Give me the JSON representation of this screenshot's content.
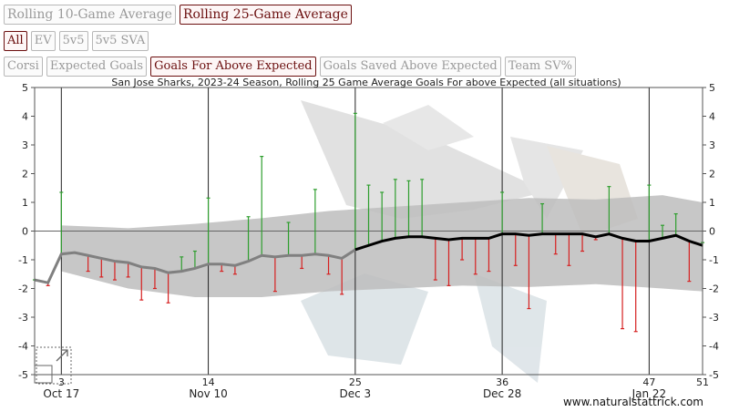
{
  "controls": {
    "window_buttons": [
      {
        "label": "Rolling 10-Game Average",
        "active": false
      },
      {
        "label": "Rolling 25-Game Average",
        "active": true
      }
    ],
    "situation_buttons": [
      {
        "label": "All",
        "active": true
      },
      {
        "label": "EV",
        "active": false
      },
      {
        "label": "5v5",
        "active": false
      },
      {
        "label": "5v5 SVA",
        "active": false
      }
    ],
    "metric_buttons": [
      {
        "label": "Corsi",
        "active": false
      },
      {
        "label": "Expected Goals",
        "active": false
      },
      {
        "label": "Goals For Above Expected",
        "active": true
      },
      {
        "label": "Goals Saved Above Expected",
        "active": false
      },
      {
        "label": "Team SV%",
        "active": false
      }
    ]
  },
  "watermark": "www.naturalstattrick.com",
  "colors": {
    "positive_bar": "#2e9e2e",
    "negative_bar": "#d62020",
    "rolling_early": "#808080",
    "rolling_main": "#000000",
    "band": "#bdbdbd",
    "accent": "#6b0f0f"
  },
  "chart_data": {
    "type": "line",
    "title": "San Jose Sharks, 2023-24 Season, Rolling 25 Game Average Goals For above Expected (all situations)",
    "xlabel": "",
    "ylabel": "",
    "xlim": [
      1,
      51
    ],
    "ylim": [
      -5,
      5
    ],
    "yticks": [
      -5,
      -4,
      -3,
      -2,
      -1,
      0,
      1,
      2,
      3,
      4,
      5
    ],
    "game_ticks": [
      3,
      14,
      25,
      36,
      47,
      51
    ],
    "date_ticks": [
      {
        "game": 3,
        "label": "Oct 17"
      },
      {
        "game": 14,
        "label": "Nov 10"
      },
      {
        "game": 25,
        "label": "Dec 3"
      },
      {
        "game": 36,
        "label": "Dec 28"
      },
      {
        "game": 47,
        "label": "Jan 22"
      }
    ],
    "grid": "vertical lines at game ticks",
    "game_values": [
      {
        "game": 1,
        "value": -1.7
      },
      {
        "game": 2,
        "value": -1.9
      },
      {
        "game": 3,
        "value": 1.35
      },
      {
        "game": 5,
        "value": -1.4
      },
      {
        "game": 6,
        "value": -1.6
      },
      {
        "game": 7,
        "value": -1.7
      },
      {
        "game": 8,
        "value": -1.6
      },
      {
        "game": 9,
        "value": -2.4
      },
      {
        "game": 10,
        "value": -2.0
      },
      {
        "game": 11,
        "value": -2.5
      },
      {
        "game": 12,
        "value": -0.9
      },
      {
        "game": 13,
        "value": -0.7
      },
      {
        "game": 14,
        "value": 1.15
      },
      {
        "game": 15,
        "value": -1.4
      },
      {
        "game": 16,
        "value": -1.5
      },
      {
        "game": 17,
        "value": 0.5
      },
      {
        "game": 18,
        "value": 2.6
      },
      {
        "game": 19,
        "value": -2.1
      },
      {
        "game": 20,
        "value": 0.3
      },
      {
        "game": 21,
        "value": -1.3
      },
      {
        "game": 22,
        "value": 1.45
      },
      {
        "game": 23,
        "value": -1.5
      },
      {
        "game": 24,
        "value": -2.2
      },
      {
        "game": 25,
        "value": 4.1
      },
      {
        "game": 26,
        "value": 1.6
      },
      {
        "game": 27,
        "value": 1.35
      },
      {
        "game": 28,
        "value": 1.8
      },
      {
        "game": 29,
        "value": 1.75
      },
      {
        "game": 30,
        "value": 1.8
      },
      {
        "game": 31,
        "value": -1.7
      },
      {
        "game": 32,
        "value": -1.9
      },
      {
        "game": 33,
        "value": -1.0
      },
      {
        "game": 34,
        "value": -1.5
      },
      {
        "game": 35,
        "value": -1.4
      },
      {
        "game": 36,
        "value": 1.35
      },
      {
        "game": 37,
        "value": -1.2
      },
      {
        "game": 38,
        "value": -2.7
      },
      {
        "game": 39,
        "value": 0.95
      },
      {
        "game": 40,
        "value": -0.8
      },
      {
        "game": 41,
        "value": -1.2
      },
      {
        "game": 42,
        "value": -0.7
      },
      {
        "game": 43,
        "value": -0.3
      },
      {
        "game": 44,
        "value": 1.55
      },
      {
        "game": 45,
        "value": -3.4
      },
      {
        "game": 46,
        "value": -3.5
      },
      {
        "game": 47,
        "value": 1.6
      },
      {
        "game": 48,
        "value": 0.2
      },
      {
        "game": 49,
        "value": 0.6
      },
      {
        "game": 50,
        "value": -1.75
      },
      {
        "game": 51,
        "value": -0.4
      }
    ],
    "rolling_average": [
      {
        "game": 1,
        "value": -1.7
      },
      {
        "game": 2,
        "value": -1.8
      },
      {
        "game": 3,
        "value": -0.8
      },
      {
        "game": 4,
        "value": -0.75
      },
      {
        "game": 5,
        "value": -0.85
      },
      {
        "game": 6,
        "value": -0.95
      },
      {
        "game": 7,
        "value": -1.05
      },
      {
        "game": 8,
        "value": -1.1
      },
      {
        "game": 9,
        "value": -1.25
      },
      {
        "game": 10,
        "value": -1.3
      },
      {
        "game": 11,
        "value": -1.45
      },
      {
        "game": 12,
        "value": -1.4
      },
      {
        "game": 13,
        "value": -1.3
      },
      {
        "game": 14,
        "value": -1.15
      },
      {
        "game": 15,
        "value": -1.15
      },
      {
        "game": 16,
        "value": -1.2
      },
      {
        "game": 17,
        "value": -1.05
      },
      {
        "game": 18,
        "value": -0.85
      },
      {
        "game": 19,
        "value": -0.9
      },
      {
        "game": 20,
        "value": -0.85
      },
      {
        "game": 21,
        "value": -0.85
      },
      {
        "game": 22,
        "value": -0.8
      },
      {
        "game": 23,
        "value": -0.85
      },
      {
        "game": 24,
        "value": -0.95
      },
      {
        "game": 25,
        "value": -0.65
      },
      {
        "game": 26,
        "value": -0.5
      },
      {
        "game": 27,
        "value": -0.35
      },
      {
        "game": 28,
        "value": -0.25
      },
      {
        "game": 29,
        "value": -0.2
      },
      {
        "game": 30,
        "value": -0.2
      },
      {
        "game": 31,
        "value": -0.25
      },
      {
        "game": 32,
        "value": -0.3
      },
      {
        "game": 33,
        "value": -0.25
      },
      {
        "game": 34,
        "value": -0.25
      },
      {
        "game": 35,
        "value": -0.25
      },
      {
        "game": 36,
        "value": -0.1
      },
      {
        "game": 37,
        "value": -0.1
      },
      {
        "game": 38,
        "value": -0.15
      },
      {
        "game": 39,
        "value": -0.1
      },
      {
        "game": 40,
        "value": -0.1
      },
      {
        "game": 41,
        "value": -0.1
      },
      {
        "game": 42,
        "value": -0.1
      },
      {
        "game": 43,
        "value": -0.2
      },
      {
        "game": 44,
        "value": -0.1
      },
      {
        "game": 45,
        "value": -0.25
      },
      {
        "game": 46,
        "value": -0.35
      },
      {
        "game": 47,
        "value": -0.35
      },
      {
        "game": 48,
        "value": -0.25
      },
      {
        "game": 49,
        "value": -0.15
      },
      {
        "game": 50,
        "value": -0.35
      },
      {
        "game": 51,
        "value": -0.5
      }
    ],
    "band": {
      "upper": [
        {
          "game": 3,
          "value": 0.2
        },
        {
          "game": 8,
          "value": 0.1
        },
        {
          "game": 13,
          "value": 0.25
        },
        {
          "game": 18,
          "value": 0.45
        },
        {
          "game": 23,
          "value": 0.7
        },
        {
          "game": 28,
          "value": 0.85
        },
        {
          "game": 33,
          "value": 1.0
        },
        {
          "game": 38,
          "value": 1.15
        },
        {
          "game": 43,
          "value": 1.1
        },
        {
          "game": 48,
          "value": 1.25
        },
        {
          "game": 51,
          "value": 1.0
        }
      ],
      "lower": [
        {
          "game": 3,
          "value": -1.4
        },
        {
          "game": 8,
          "value": -2.0
        },
        {
          "game": 13,
          "value": -2.3
        },
        {
          "game": 18,
          "value": -2.3
        },
        {
          "game": 23,
          "value": -2.1
        },
        {
          "game": 28,
          "value": -2.0
        },
        {
          "game": 33,
          "value": -1.9
        },
        {
          "game": 38,
          "value": -1.95
        },
        {
          "game": 43,
          "value": -1.85
        },
        {
          "game": 48,
          "value": -2.0
        },
        {
          "game": 51,
          "value": -2.1
        }
      ]
    },
    "rolling_full_window_from_game": 25
  }
}
